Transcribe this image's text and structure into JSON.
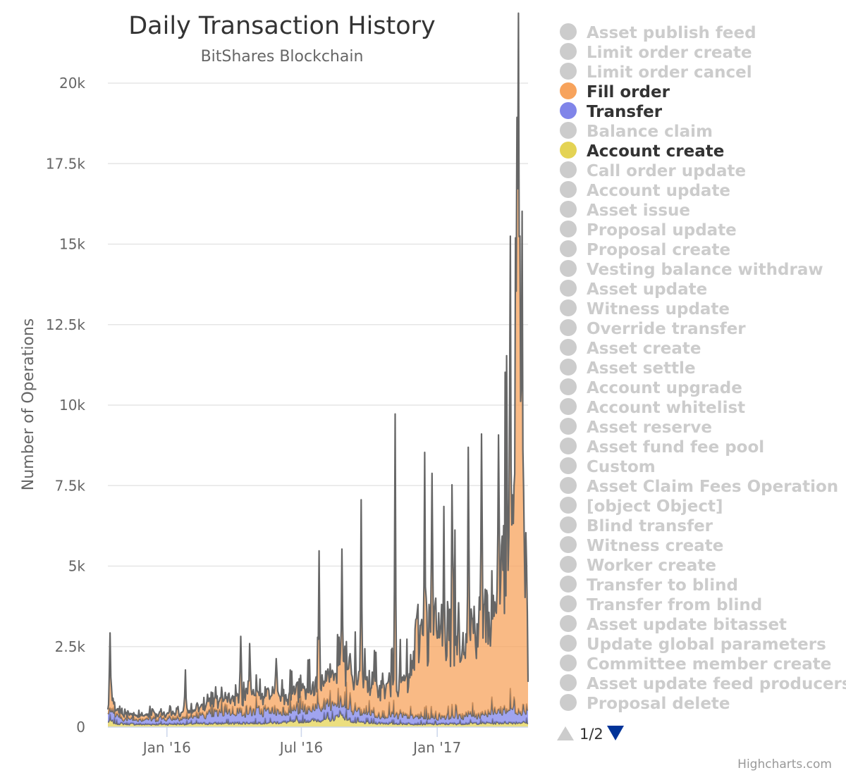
{
  "chart_data": {
    "type": "area",
    "stacked": true,
    "title": "Daily Transaction History",
    "subtitle": "BitShares Blockchain",
    "ylabel": "Number of Operations",
    "xlabel": "",
    "ylim": [
      0,
      20000
    ],
    "yticks": [
      0,
      2500,
      5000,
      7500,
      10000,
      12500,
      15000,
      17500,
      20000
    ],
    "ytick_labels": [
      "0",
      "2.5k",
      "5k",
      "7.5k",
      "10k",
      "12.5k",
      "15k",
      "17.5k",
      "20k"
    ],
    "xlim": [
      "2015-10-13",
      "2017-05-04"
    ],
    "xticks": [
      "2016-01-01",
      "2016-07-01",
      "2017-01-01"
    ],
    "xtick_labels": [
      "Jan '16",
      "Jul '16",
      "Jan '17"
    ],
    "grid": true,
    "legend_position": "right",
    "series": [
      {
        "name": "Account create",
        "color": "#e4d354",
        "anchors": [
          [
            "2015-10-13",
            150
          ],
          [
            "2015-10-15",
            220
          ],
          [
            "2015-10-25",
            120
          ],
          [
            "2015-12-01",
            90
          ],
          [
            "2016-02-01",
            110
          ],
          [
            "2016-04-01",
            130
          ],
          [
            "2016-06-01",
            150
          ],
          [
            "2016-08-10",
            250
          ],
          [
            "2016-08-25",
            380
          ],
          [
            "2016-09-10",
            160
          ],
          [
            "2016-11-01",
            120
          ],
          [
            "2017-01-01",
            100
          ],
          [
            "2017-03-01",
            130
          ],
          [
            "2017-05-01",
            150
          ]
        ],
        "noise": 0.3,
        "spikes": [
          [
            "2016-08-22",
            220
          ]
        ]
      },
      {
        "name": "Transfer",
        "color": "#8085e9",
        "anchors": [
          [
            "2015-10-13",
            200
          ],
          [
            "2015-10-16",
            350
          ],
          [
            "2015-11-01",
            150
          ],
          [
            "2015-12-15",
            180
          ],
          [
            "2016-02-01",
            200
          ],
          [
            "2016-03-15",
            350
          ],
          [
            "2016-05-01",
            380
          ],
          [
            "2016-07-01",
            350
          ],
          [
            "2016-08-01",
            420
          ],
          [
            "2016-09-15",
            330
          ],
          [
            "2016-11-01",
            260
          ],
          [
            "2016-12-20",
            220
          ],
          [
            "2017-01-20",
            250
          ],
          [
            "2017-03-01",
            280
          ],
          [
            "2017-04-10",
            450
          ],
          [
            "2017-05-01",
            420
          ]
        ],
        "noise": 0.45,
        "spikes": [
          [
            "2016-03-20",
            250
          ],
          [
            "2016-09-05",
            500
          ],
          [
            "2017-04-15",
            250
          ]
        ]
      },
      {
        "name": "Fill order",
        "color": "#f7a35c",
        "anchors": [
          [
            "2015-10-13",
            150
          ],
          [
            "2015-10-16",
            700
          ],
          [
            "2015-10-22",
            150
          ],
          [
            "2015-12-01",
            120
          ],
          [
            "2016-01-15",
            160
          ],
          [
            "2016-02-15",
            220
          ],
          [
            "2016-03-15",
            400
          ],
          [
            "2016-05-01",
            500
          ],
          [
            "2016-06-15",
            500
          ],
          [
            "2016-07-01",
            600
          ],
          [
            "2016-08-01",
            800
          ],
          [
            "2016-09-01",
            1100
          ],
          [
            "2016-10-01",
            900
          ],
          [
            "2016-11-01",
            900
          ],
          [
            "2016-11-25",
            1100
          ],
          [
            "2016-12-05",
            2600
          ],
          [
            "2017-01-01",
            2700
          ],
          [
            "2017-02-01",
            2600
          ],
          [
            "2017-03-01",
            2800
          ],
          [
            "2017-03-20",
            3200
          ],
          [
            "2017-04-05",
            5000
          ],
          [
            "2017-04-18",
            7000
          ],
          [
            "2017-05-01",
            4500
          ],
          [
            "2017-05-04",
            1200
          ]
        ],
        "noise": 0.4,
        "spikes": [
          [
            "2015-10-16",
            1600
          ],
          [
            "2016-01-26",
            1300
          ],
          [
            "2016-04-10",
            1800
          ],
          [
            "2016-04-22",
            1400
          ],
          [
            "2016-05-28",
            1400
          ],
          [
            "2016-07-25",
            3900
          ],
          [
            "2016-08-25",
            4000
          ],
          [
            "2016-09-20",
            5800
          ],
          [
            "2016-11-05",
            8700
          ],
          [
            "2016-12-15",
            6000
          ],
          [
            "2016-12-25",
            4500
          ],
          [
            "2017-01-10",
            4000
          ],
          [
            "2017-01-22",
            3200
          ],
          [
            "2017-02-12",
            5500
          ],
          [
            "2017-03-02",
            6500
          ],
          [
            "2017-03-25",
            5800
          ],
          [
            "2017-04-10",
            7000
          ],
          [
            "2017-04-19",
            11000
          ],
          [
            "2017-04-21",
            16500
          ],
          [
            "2017-04-23",
            10000
          ],
          [
            "2017-04-26",
            11000
          ]
        ]
      },
      {
        "name": "Asset publish feed",
        "color": "#cccccc",
        "hidden": true,
        "anchors": [
          [
            "2015-10-13",
            0
          ],
          [
            "2017-05-04",
            0
          ]
        ],
        "noise": 0,
        "spikes": []
      }
    ],
    "legend": {
      "items": [
        {
          "name": "Asset publish feed",
          "color": "#cccccc",
          "active": false
        },
        {
          "name": "Limit order create",
          "color": "#cccccc",
          "active": false
        },
        {
          "name": "Limit order cancel",
          "color": "#cccccc",
          "active": false
        },
        {
          "name": "Fill order",
          "color": "#f7a35c",
          "active": true
        },
        {
          "name": "Transfer",
          "color": "#8085e9",
          "active": true
        },
        {
          "name": "Balance claim",
          "color": "#cccccc",
          "active": false
        },
        {
          "name": "Account create",
          "color": "#e4d354",
          "active": true
        },
        {
          "name": "Call order update",
          "color": "#cccccc",
          "active": false
        },
        {
          "name": "Account update",
          "color": "#cccccc",
          "active": false
        },
        {
          "name": "Asset issue",
          "color": "#cccccc",
          "active": false
        },
        {
          "name": "Proposal update",
          "color": "#cccccc",
          "active": false
        },
        {
          "name": "Proposal create",
          "color": "#cccccc",
          "active": false
        },
        {
          "name": "Vesting balance withdraw",
          "color": "#cccccc",
          "active": false
        },
        {
          "name": "Asset update",
          "color": "#cccccc",
          "active": false
        },
        {
          "name": "Witness update",
          "color": "#cccccc",
          "active": false
        },
        {
          "name": "Override transfer",
          "color": "#cccccc",
          "active": false
        },
        {
          "name": "Asset create",
          "color": "#cccccc",
          "active": false
        },
        {
          "name": "Asset settle",
          "color": "#cccccc",
          "active": false
        },
        {
          "name": "Account upgrade",
          "color": "#cccccc",
          "active": false
        },
        {
          "name": "Account whitelist",
          "color": "#cccccc",
          "active": false
        },
        {
          "name": "Asset reserve",
          "color": "#cccccc",
          "active": false
        },
        {
          "name": "Asset fund fee pool",
          "color": "#cccccc",
          "active": false
        },
        {
          "name": "Custom",
          "color": "#cccccc",
          "active": false
        },
        {
          "name": "Asset Claim Fees Operation",
          "color": "#cccccc",
          "active": false
        },
        {
          "name": "[object Object]",
          "color": "#cccccc",
          "active": false
        },
        {
          "name": "Blind transfer",
          "color": "#cccccc",
          "active": false
        },
        {
          "name": "Witness create",
          "color": "#cccccc",
          "active": false
        },
        {
          "name": "Worker create",
          "color": "#cccccc",
          "active": false
        },
        {
          "name": "Transfer to blind",
          "color": "#cccccc",
          "active": false
        },
        {
          "name": "Transfer from blind",
          "color": "#cccccc",
          "active": false
        },
        {
          "name": "Asset update bitasset",
          "color": "#cccccc",
          "active": false
        },
        {
          "name": "Update global parameters",
          "color": "#cccccc",
          "active": false
        },
        {
          "name": "Committee member create",
          "color": "#cccccc",
          "active": false
        },
        {
          "name": "Asset update feed producers",
          "color": "#cccccc",
          "active": false
        },
        {
          "name": "Proposal delete",
          "color": "#cccccc",
          "active": false
        }
      ],
      "pager": {
        "text": "1/2",
        "up_icon": "triangle-up-icon",
        "down_icon": "triangle-down-icon",
        "up_color": "#cccccc",
        "down_color": "#003399"
      }
    },
    "credits": "Highcharts.com"
  }
}
